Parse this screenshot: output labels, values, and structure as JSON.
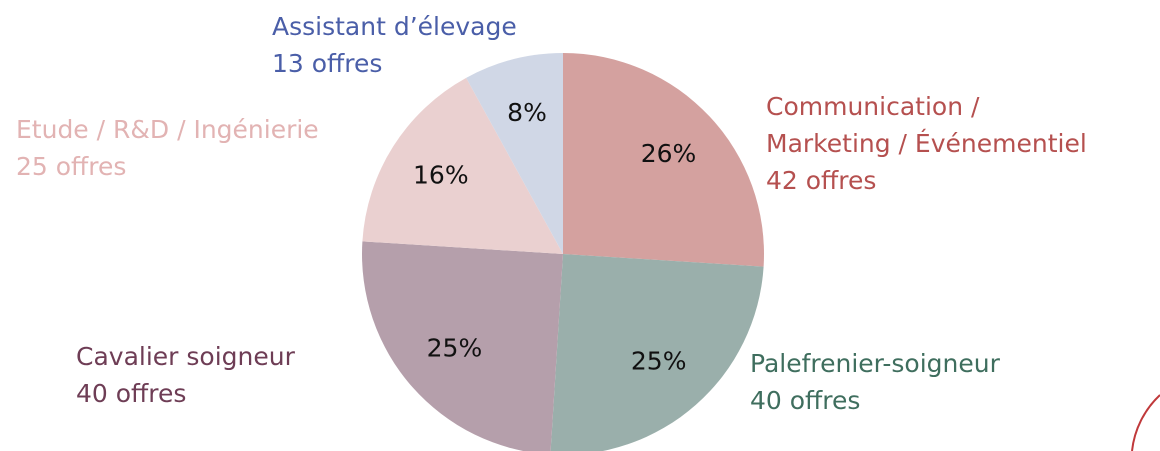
{
  "chart_data": {
    "type": "pie",
    "categories": [
      "Communication / Marketing / Événementiel",
      "Palefrenier-soigneur",
      "Cavalier soigneur",
      "Etude / R&D / Ingénierie",
      "Assistant d’élevage"
    ],
    "category_lines": [
      [
        "Communication /",
        "Marketing / Événementiel"
      ],
      [
        "Palefrenier-soigneur"
      ],
      [
        "Cavalier soigneur"
      ],
      [
        "Etude / R&D / Ingénierie"
      ],
      [
        "Assistant d’élevage"
      ]
    ],
    "offers": [
      "42 offres",
      "40 offres",
      "40 offres",
      "25 offres",
      "13 offres"
    ],
    "values": [
      26,
      25,
      25,
      16,
      8
    ],
    "value_labels": [
      "26%",
      "25%",
      "25%",
      "16%",
      "8%"
    ],
    "colors": [
      "#d4a19f",
      "#9aafab",
      "#b59fab",
      "#ead0d0",
      "#d0d7e6"
    ],
    "label_colors": [
      "#b5504f",
      "#3f6e5e",
      "#6e3d55",
      "#e2b3b3",
      "#4a5ea8"
    ]
  }
}
